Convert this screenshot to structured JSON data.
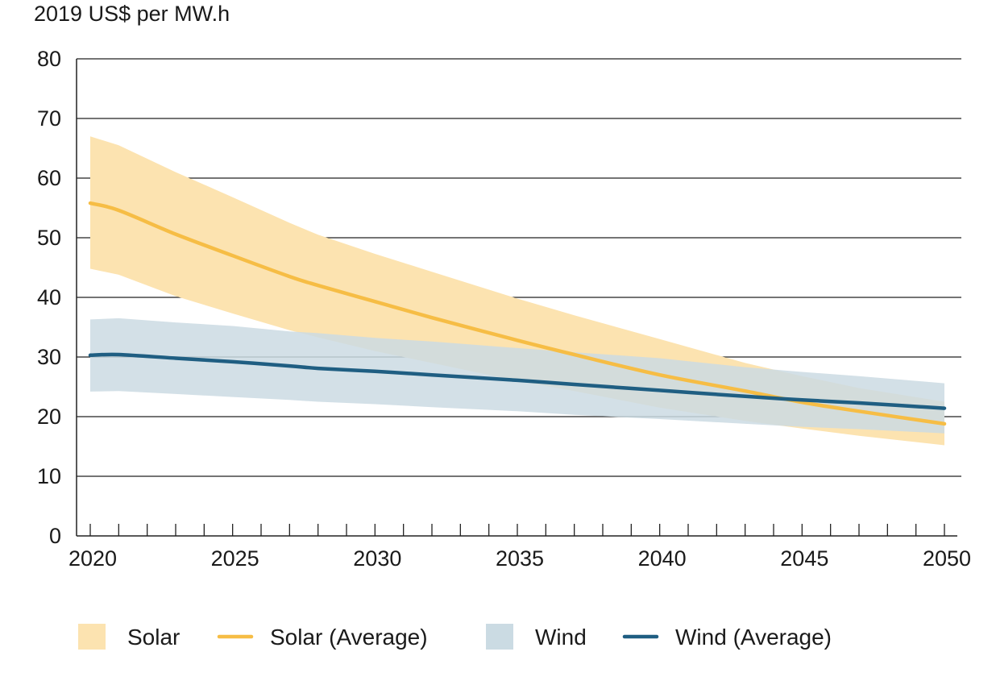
{
  "chart_data": {
    "type": "area",
    "ylabel": "2019 US$ per MW.h",
    "xlim": [
      2020,
      2050
    ],
    "ylim": [
      0,
      80
    ],
    "x_ticks": [
      2020,
      2025,
      2030,
      2035,
      2040,
      2045,
      2050
    ],
    "y_ticks": [
      0,
      10,
      20,
      30,
      40,
      50,
      60,
      70,
      80
    ],
    "grid": "horizontal",
    "legend_position": "bottom",
    "colors": {
      "solar_band": "#fce3b0",
      "solar_line": "#f6bd45",
      "wind_band": "#cbdbe3",
      "wind_line": "#1f5e82",
      "grid": "#222222"
    },
    "x": [
      2020,
      2021,
      2023,
      2025,
      2027,
      2028,
      2030,
      2032,
      2035,
      2037,
      2040,
      2043,
      2045,
      2047,
      2050
    ],
    "series": [
      {
        "name": "Solar",
        "kind": "band",
        "upper": [
          67.0,
          65.5,
          61.0,
          56.8,
          52.5,
          50.5,
          47.3,
          44.3,
          39.8,
          37.0,
          33.0,
          29.0,
          26.8,
          24.8,
          22.5
        ],
        "lower": [
          44.8,
          43.8,
          40.2,
          37.3,
          34.5,
          33.3,
          31.0,
          29.0,
          26.0,
          24.3,
          21.5,
          19.3,
          18.0,
          16.8,
          15.2
        ]
      },
      {
        "name": "Solar (Average)",
        "kind": "line",
        "values": [
          55.8,
          54.6,
          50.6,
          47.0,
          43.5,
          42.0,
          39.3,
          36.6,
          32.8,
          30.4,
          27.0,
          24.3,
          22.4,
          20.9,
          18.8
        ]
      },
      {
        "name": "Wind",
        "kind": "band",
        "upper": [
          36.3,
          36.5,
          35.8,
          35.2,
          34.3,
          34.0,
          33.2,
          32.6,
          31.5,
          30.8,
          29.8,
          28.3,
          27.5,
          26.8,
          25.6
        ],
        "lower": [
          24.2,
          24.3,
          23.8,
          23.3,
          22.8,
          22.5,
          22.1,
          21.6,
          20.9,
          20.3,
          19.6,
          18.8,
          18.3,
          17.9,
          17.2
        ]
      },
      {
        "name": "Wind (Average)",
        "kind": "line",
        "values": [
          30.3,
          30.4,
          29.8,
          29.2,
          28.5,
          28.1,
          27.6,
          27.0,
          26.1,
          25.4,
          24.4,
          23.4,
          22.8,
          22.3,
          21.4
        ]
      }
    ]
  }
}
